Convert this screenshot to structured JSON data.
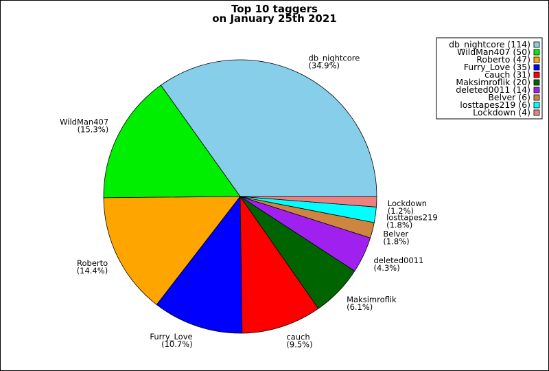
{
  "chart_data": {
    "type": "pie",
    "title": "Top 10 taggers",
    "subtitle": "on January 25th 2021",
    "legend_position": "top-right",
    "slices": [
      {
        "name": "db_nightcore",
        "value": 114,
        "percent": "(34.9%)",
        "legend": "db_nightcore (114)",
        "color": "#87ceeb"
      },
      {
        "name": "WildMan407",
        "value": 50,
        "percent": "(15.3%)",
        "legend": "WildMan407 (50)",
        "color": "#00ee00"
      },
      {
        "name": "Roberto",
        "value": 47,
        "percent": "(14.4%)",
        "legend": "Roberto (47)",
        "color": "#ffa500"
      },
      {
        "name": "Furry_Love",
        "value": 35,
        "percent": "(10.7%)",
        "legend": "Furry_Love (35)",
        "color": "#0000ff"
      },
      {
        "name": "cauch",
        "value": 31,
        "percent": "(9.5%)",
        "legend": "cauch (31)",
        "color": "#ff0000"
      },
      {
        "name": "Maksimroflik",
        "value": 20,
        "percent": "(6.1%)",
        "legend": "Maksimroflik (20)",
        "color": "#006400"
      },
      {
        "name": "deleted0011",
        "value": 14,
        "percent": "(4.3%)",
        "legend": "deleted0011 (14)",
        "color": "#a020f0"
      },
      {
        "name": "Belver",
        "value": 6,
        "percent": "(1.8%)",
        "legend": "Belver (6)",
        "color": "#cd853f"
      },
      {
        "name": "losttapes219",
        "value": 6,
        "percent": "(1.8%)",
        "legend": "losttapes219 (6)",
        "color": "#00ffff"
      },
      {
        "name": "Lockdown",
        "value": 4,
        "percent": "(1.2%)",
        "legend": "Lockdown (4)",
        "color": "#f08080"
      }
    ]
  }
}
